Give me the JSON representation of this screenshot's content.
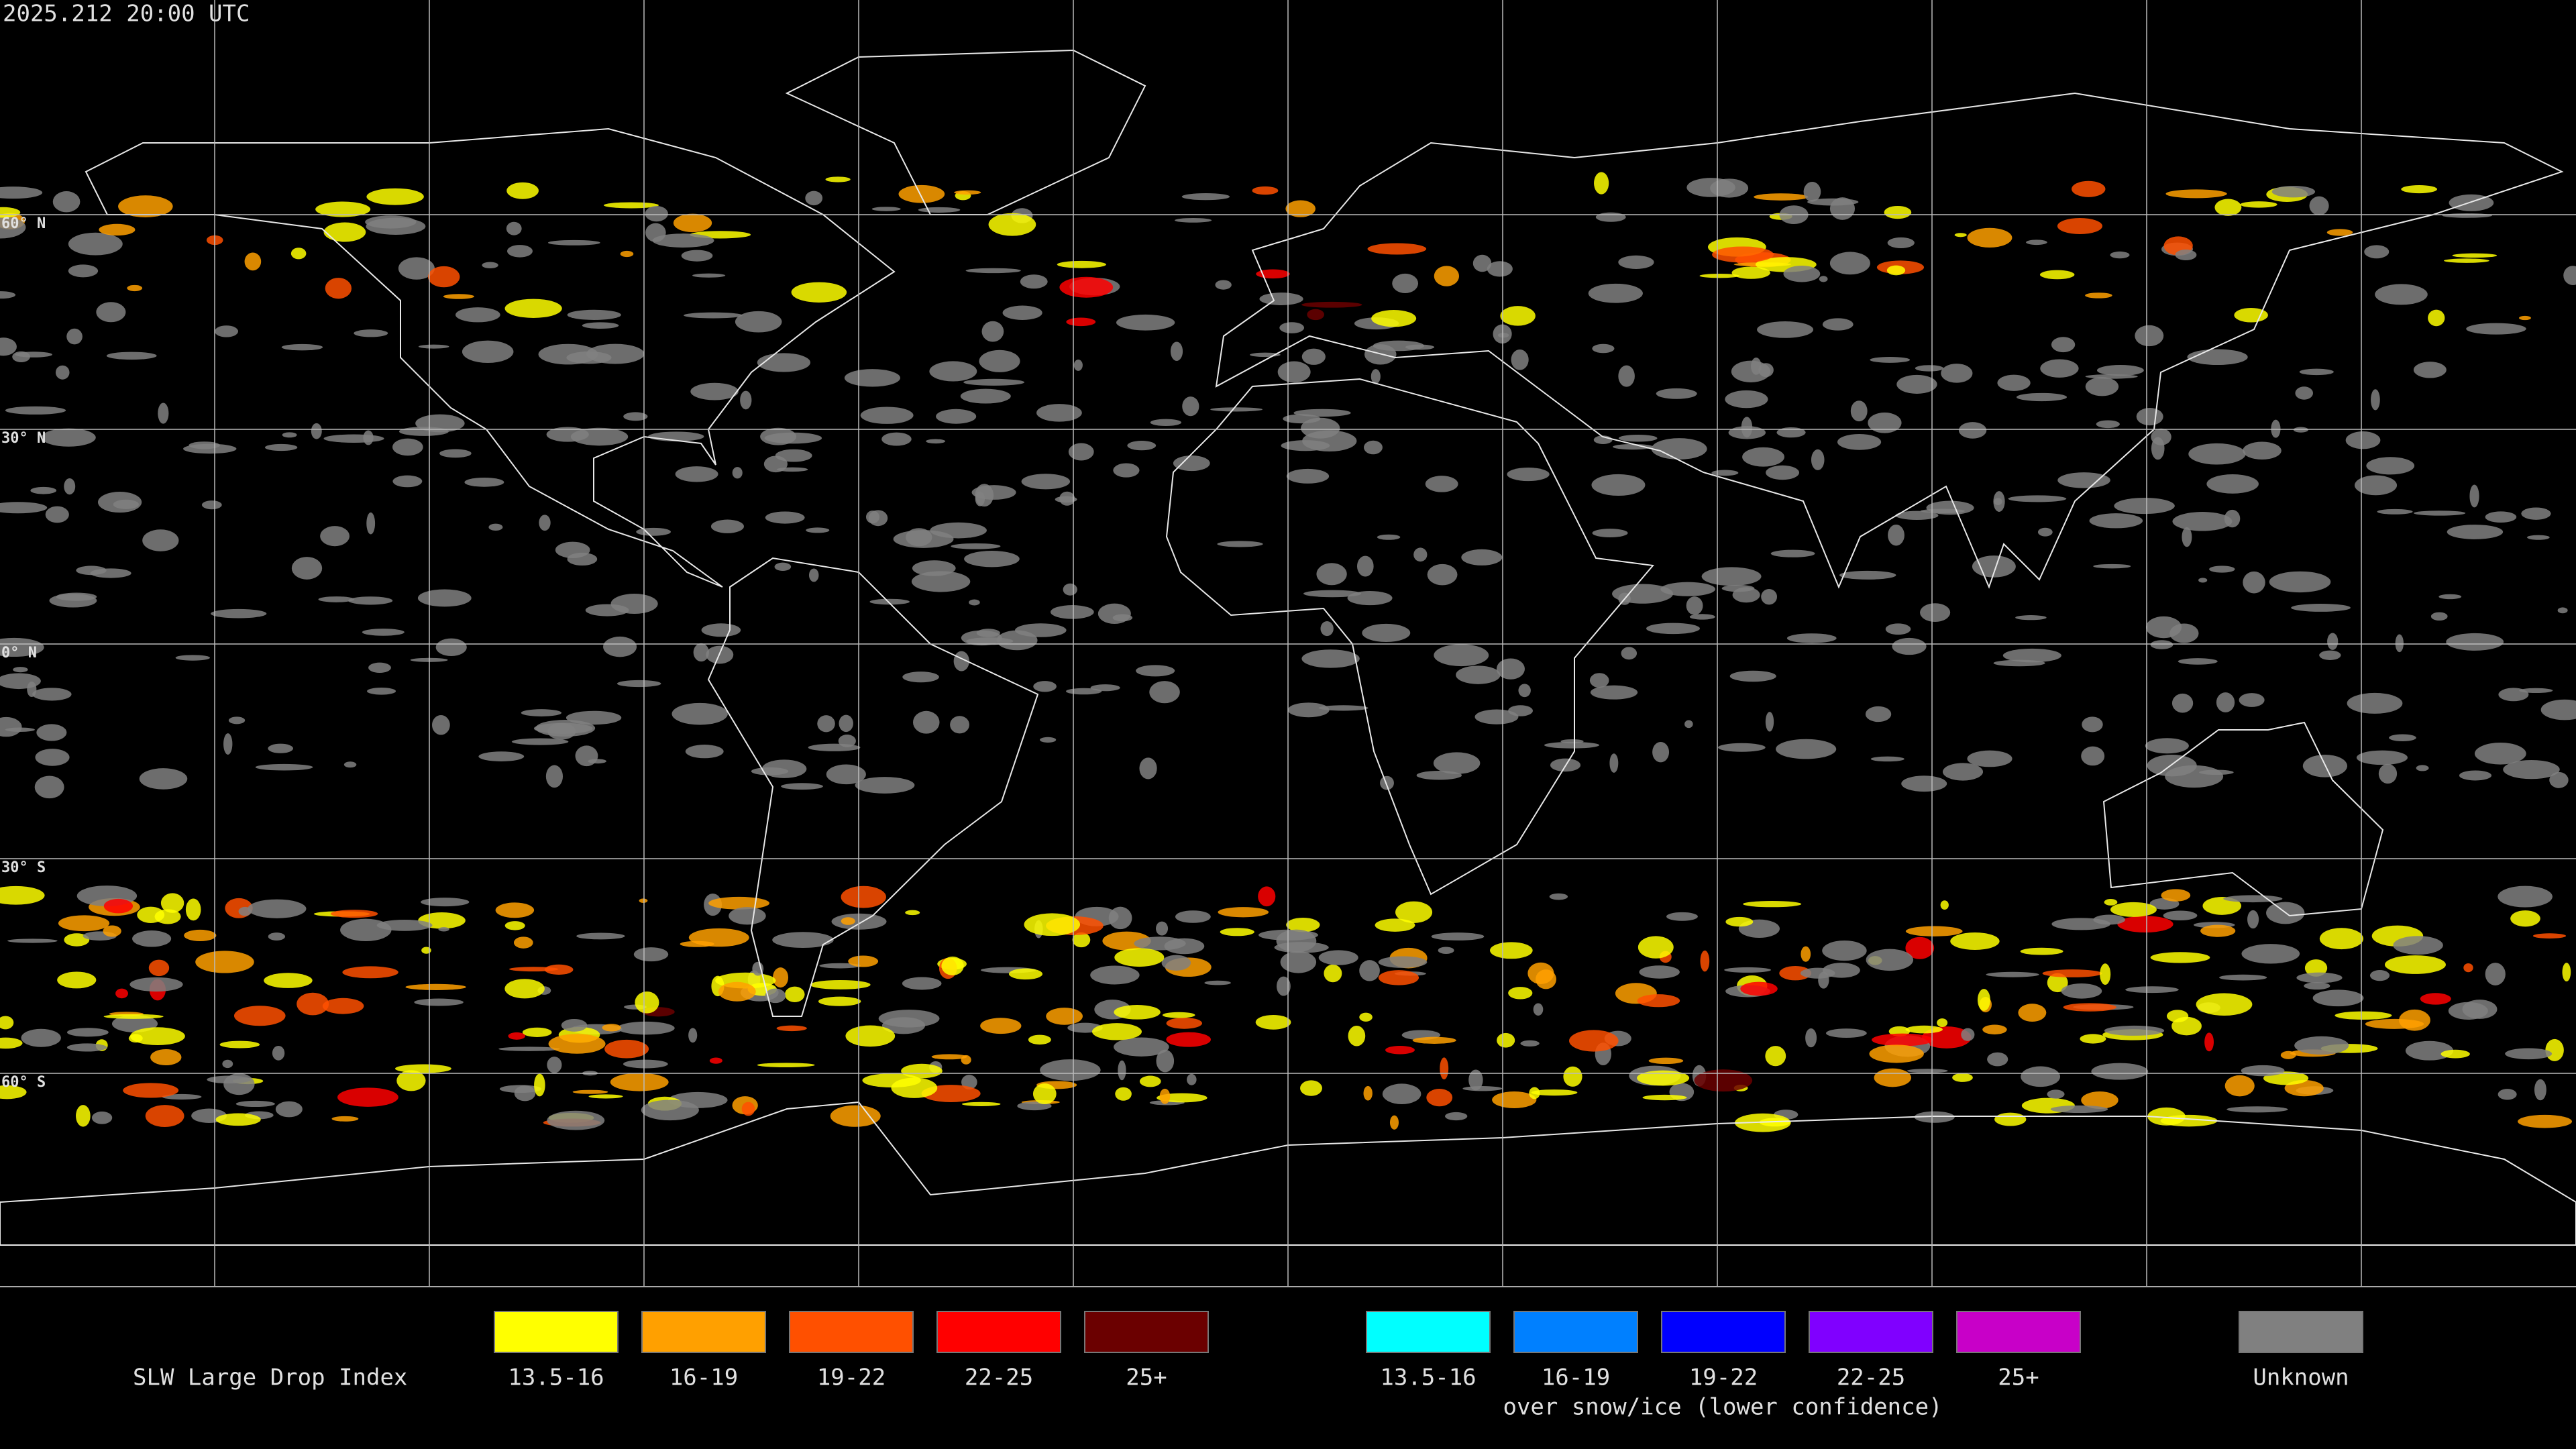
{
  "header": {
    "timestamp": "2025.212 20:00 UTC"
  },
  "map": {
    "lat_labels": [
      "60° N",
      "30° N",
      "0° N",
      "30° S",
      "60° S"
    ]
  },
  "legend": {
    "title": "SLW Large Drop Index",
    "groups": [
      {
        "items": [
          {
            "label": "13.5-16",
            "color": "#ffff00"
          },
          {
            "label": "16-19",
            "color": "#ffa000"
          },
          {
            "label": "19-22",
            "color": "#ff5000"
          },
          {
            "label": "22-25",
            "color": "#ff0000"
          },
          {
            "label": "25+",
            "color": "#6b0000"
          }
        ]
      },
      {
        "items": [
          {
            "label": "13.5-16",
            "color": "#00ffff"
          },
          {
            "label": "16-19",
            "color": "#0080ff"
          },
          {
            "label": "19-22",
            "color": "#0000ff"
          },
          {
            "label": "22-25",
            "color": "#8000ff"
          },
          {
            "label": "25+",
            "color": "#c800c8"
          }
        ],
        "caption": "over snow/ice (lower confidence)"
      }
    ],
    "unknown": {
      "label": "Unknown",
      "color": "#808080"
    }
  }
}
